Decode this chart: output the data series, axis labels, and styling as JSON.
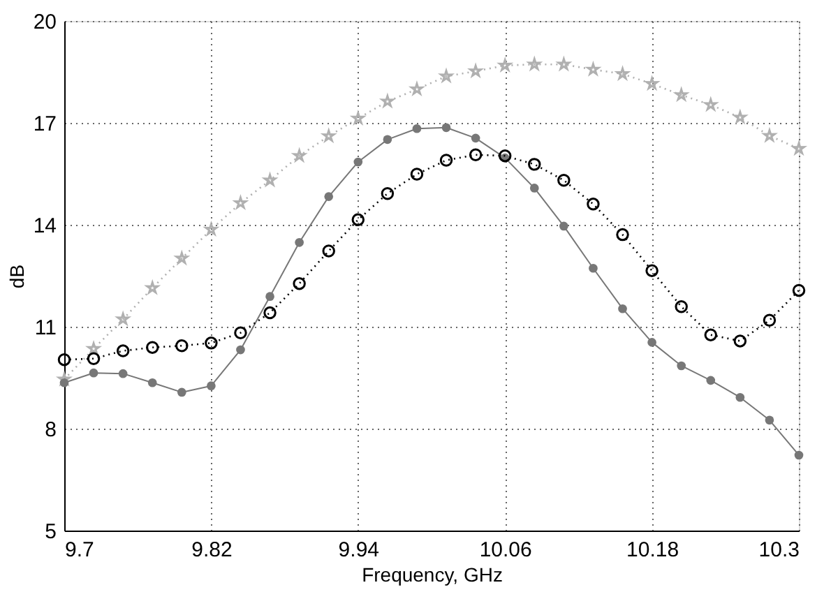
{
  "chart_data": {
    "type": "line",
    "xlabel": "Frequency, GHz",
    "ylabel": "dB",
    "x": [
      9.7,
      9.724,
      9.748,
      9.772,
      9.796,
      9.82,
      9.844,
      9.868,
      9.892,
      9.916,
      9.94,
      9.964,
      9.988,
      10.012,
      10.036,
      10.06,
      10.084,
      10.108,
      10.132,
      10.156,
      10.18,
      10.204,
      10.228,
      10.252,
      10.276,
      10.3
    ],
    "series": [
      {
        "color": "#b0b0b0",
        "line_style": "dotted",
        "marker": "star",
        "values": [
          9.45,
          10.35,
          11.22,
          12.14,
          13.01,
          13.86,
          14.64,
          15.31,
          16.03,
          16.61,
          17.13,
          17.63,
          17.99,
          18.37,
          18.52,
          18.69,
          18.72,
          18.72,
          18.57,
          18.44,
          18.15,
          17.82,
          17.53,
          17.16,
          16.62,
          16.24
        ]
      },
      {
        "color": "#777777",
        "line_style": "solid",
        "marker": "circle",
        "values": [
          9.35,
          9.64,
          9.62,
          9.35,
          9.07,
          9.26,
          10.32,
          11.89,
          13.48,
          14.83,
          15.85,
          16.51,
          16.83,
          16.86,
          16.55,
          15.97,
          15.08,
          13.96,
          12.72,
          11.53,
          10.54,
          9.85,
          9.42,
          8.92,
          8.25,
          7.22
        ]
      },
      {
        "color": "#000000",
        "line_style": "dotted",
        "marker": "circle",
        "values": [
          10.03,
          10.06,
          10.29,
          10.39,
          10.44,
          10.52,
          10.82,
          11.41,
          12.27,
          13.23,
          14.15,
          14.92,
          15.49,
          15.9,
          16.06,
          16.03,
          15.78,
          15.31,
          14.61,
          13.71,
          12.65,
          11.59,
          10.76,
          10.58,
          11.19,
          12.07
        ]
      }
    ],
    "xlim": [
      9.7,
      10.3
    ],
    "xticks": [
      9.7,
      9.82,
      9.94,
      10.06,
      10.18,
      10.3
    ],
    "ylim": [
      5,
      20
    ],
    "yticks": [
      5,
      8,
      11,
      14,
      17,
      20
    ],
    "grid": true
  }
}
